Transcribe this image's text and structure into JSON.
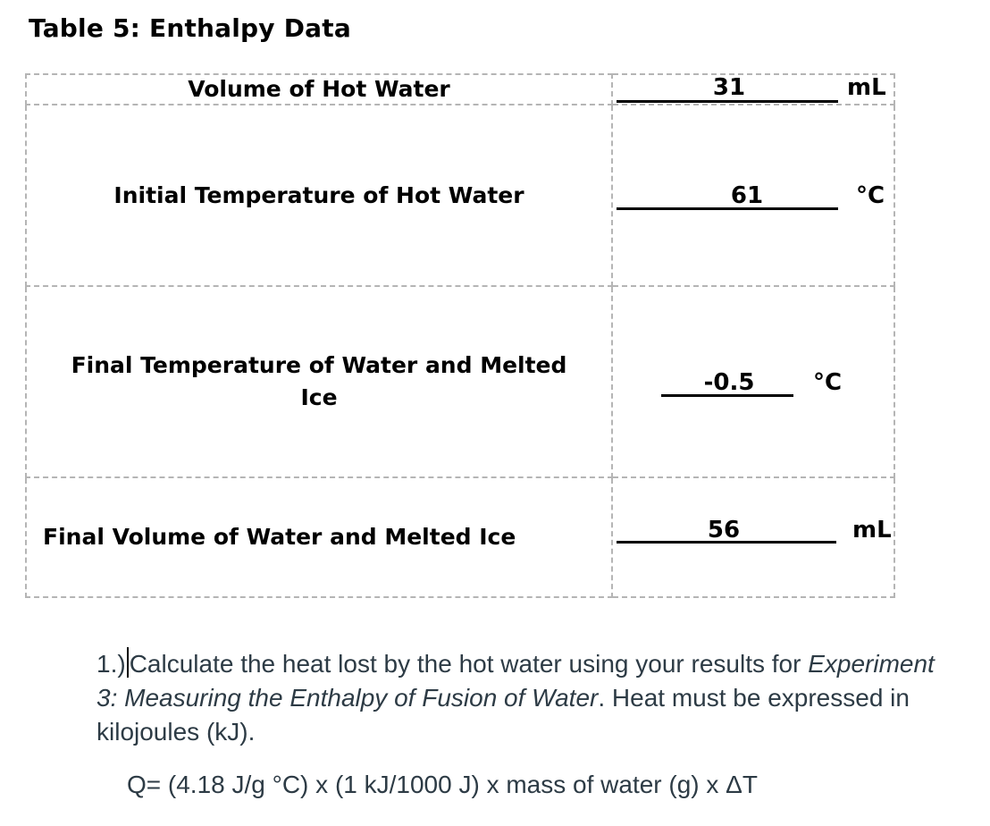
{
  "title": "Table 5: Enthalpy Data",
  "rows": [
    {
      "label": "Volume of Hot Water",
      "value": "31",
      "unit": "mL"
    },
    {
      "label": "Initial Temperature of Hot Water",
      "value": "61",
      "unit": "°C"
    },
    {
      "label_line1": "Final Temperature of Water and Melted",
      "label_line2": "Ice",
      "value": "-0.5",
      "unit": "°C"
    },
    {
      "label": "Final Volume of Water and Melted Ice",
      "value": "56",
      "unit": "mL"
    }
  ],
  "question": {
    "number": "1.)",
    "text_a": "Calculate the heat lost by the hot water using your results for ",
    "text_italic": "Experiment 3: Measuring the Enthalpy of Fusion of Water",
    "text_b": ". Heat must be expressed in kilojoules (kJ)."
  },
  "formula": "Q= (4.18 J/g °C) x (1 kJ/1000 J) x mass of water (g) x ΔT"
}
